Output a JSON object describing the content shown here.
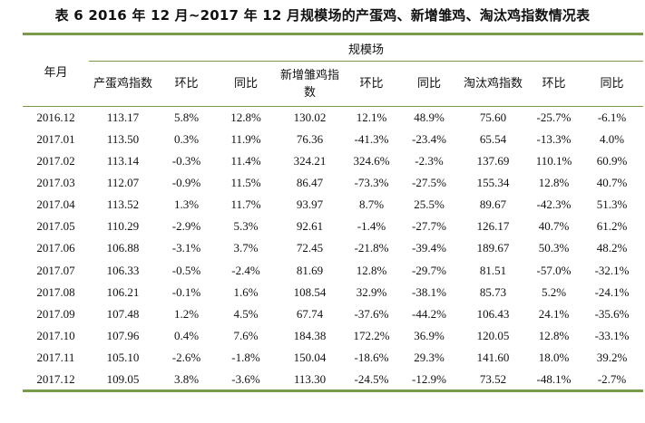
{
  "title": "表 6   2016 年 12 月~2017 年 12 月规模场的产蛋鸡、新增雏鸡、淘汰鸡指数情况表",
  "headers": {
    "year_month": "年月",
    "group": "规模场",
    "egg_index": "产蛋鸡指数",
    "mom_1": "环比",
    "yoy_1": "同比",
    "chick_index": "新增雏鸡指数",
    "mom_2": "环比",
    "yoy_2": "同比",
    "cull_index": "淘汰鸡指数",
    "mom_3": "环比",
    "yoy_3": "同比"
  },
  "rows": [
    [
      "2016.12",
      "113.17",
      "5.8%",
      "12.8%",
      "130.02",
      "12.1%",
      "48.9%",
      "75.60",
      "-25.7%",
      "-6.1%"
    ],
    [
      "2017.01",
      "113.50",
      "0.3%",
      "11.9%",
      "76.36",
      "-41.3%",
      "-23.4%",
      "65.54",
      "-13.3%",
      "4.0%"
    ],
    [
      "2017.02",
      "113.14",
      "-0.3%",
      "11.4%",
      "324.21",
      "324.6%",
      "-2.3%",
      "137.69",
      "110.1%",
      "60.9%"
    ],
    [
      "2017.03",
      "112.07",
      "-0.9%",
      "11.5%",
      "86.47",
      "-73.3%",
      "-27.5%",
      "155.34",
      "12.8%",
      "40.7%"
    ],
    [
      "2017.04",
      "113.52",
      "1.3%",
      "11.7%",
      "93.97",
      "8.7%",
      "25.5%",
      "89.67",
      "-42.3%",
      "51.3%"
    ],
    [
      "2017.05",
      "110.29",
      "-2.9%",
      "5.3%",
      "92.61",
      "-1.4%",
      "-27.7%",
      "126.17",
      "40.7%",
      "61.2%"
    ],
    [
      "2017.06",
      "106.88",
      "-3.1%",
      "3.7%",
      "72.45",
      "-21.8%",
      "-39.4%",
      "189.67",
      "50.3%",
      "48.2%"
    ],
    [
      "2017.07",
      "106.33",
      "-0.5%",
      "-2.4%",
      "81.69",
      "12.8%",
      "-29.7%",
      "81.51",
      "-57.0%",
      "-32.1%"
    ],
    [
      "2017.08",
      "106.21",
      "-0.1%",
      "1.6%",
      "108.54",
      "32.9%",
      "-38.1%",
      "85.73",
      "5.2%",
      "-24.1%"
    ],
    [
      "2017.09",
      "107.48",
      "1.2%",
      "4.5%",
      "67.74",
      "-37.6%",
      "-44.2%",
      "106.43",
      "24.1%",
      "-35.6%"
    ],
    [
      "2017.10",
      "107.96",
      "0.4%",
      "7.6%",
      "184.38",
      "172.2%",
      "36.9%",
      "120.05",
      "12.8%",
      "-33.1%"
    ],
    [
      "2017.11",
      "105.10",
      "-2.6%",
      "-1.8%",
      "150.04",
      "-18.6%",
      "29.3%",
      "141.60",
      "18.0%",
      "39.2%"
    ],
    [
      "2017.12",
      "109.05",
      "3.8%",
      "-3.6%",
      "113.30",
      "-24.5%",
      "-12.9%",
      "73.52",
      "-48.1%",
      "-2.7%"
    ]
  ],
  "colors": {
    "rule": "#7a9a4c",
    "text": "#111111"
  }
}
